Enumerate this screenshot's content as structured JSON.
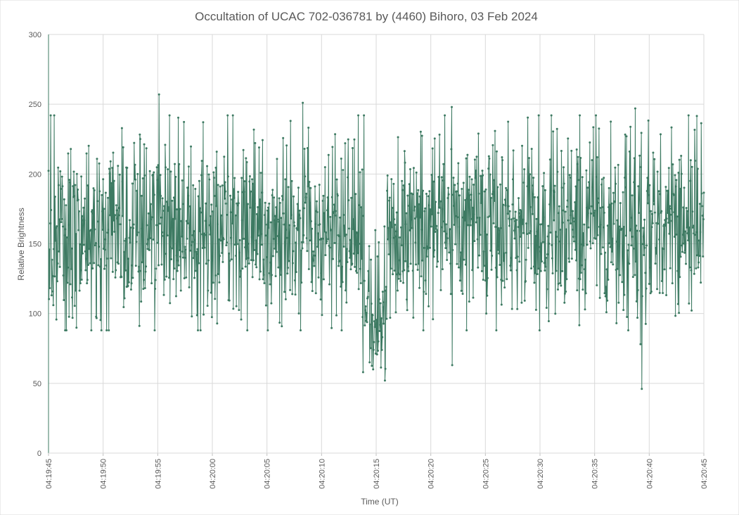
{
  "chart_data": {
    "type": "line",
    "title": "Occultation of UCAC 702-036781 by (4460) Bihoro, 03 Feb 2024",
    "xlabel": "Time (UT)",
    "ylabel": "Relative Brightness",
    "ylim": [
      0,
      300
    ],
    "yticks": [
      "0",
      "50",
      "100",
      "150",
      "200",
      "250",
      "300"
    ],
    "xlim_seconds": [
      0,
      60
    ],
    "xticks": [
      "04:19:45",
      "04:19:50",
      "04:19:55",
      "04:20:00",
      "04:20:05",
      "04:20:10",
      "04:20:15",
      "04:20:20",
      "04:20:25",
      "04:20:30",
      "04:20:35",
      "04:20:40",
      "04:20:45"
    ],
    "grid": true,
    "legend": "none",
    "series": [
      {
        "name": "",
        "color": "#3d7a62",
        "sample_interval_s": 0.04,
        "baseline_mean": 163,
        "baseline_spread": 35,
        "event_window_utc": [
          "04:20:13.9",
          "04:20:15.9"
        ],
        "event_mean": 100,
        "highlight_points": [
          {
            "t": "04:19:55.1",
            "y": 257
          },
          {
            "t": "04:20:08.3",
            "y": 251
          },
          {
            "t": "04:20:13.8",
            "y": 58
          },
          {
            "t": "04:20:14.7",
            "y": 60
          },
          {
            "t": "04:20:15.8",
            "y": 52
          },
          {
            "t": "04:20:21.9",
            "y": 248
          },
          {
            "t": "04:20:21.9",
            "y": 63
          },
          {
            "t": "04:20:38.7",
            "y": 247
          },
          {
            "t": "04:20:39.3",
            "y": 46
          },
          {
            "t": "04:20:39.2",
            "y": 78
          }
        ]
      }
    ]
  }
}
